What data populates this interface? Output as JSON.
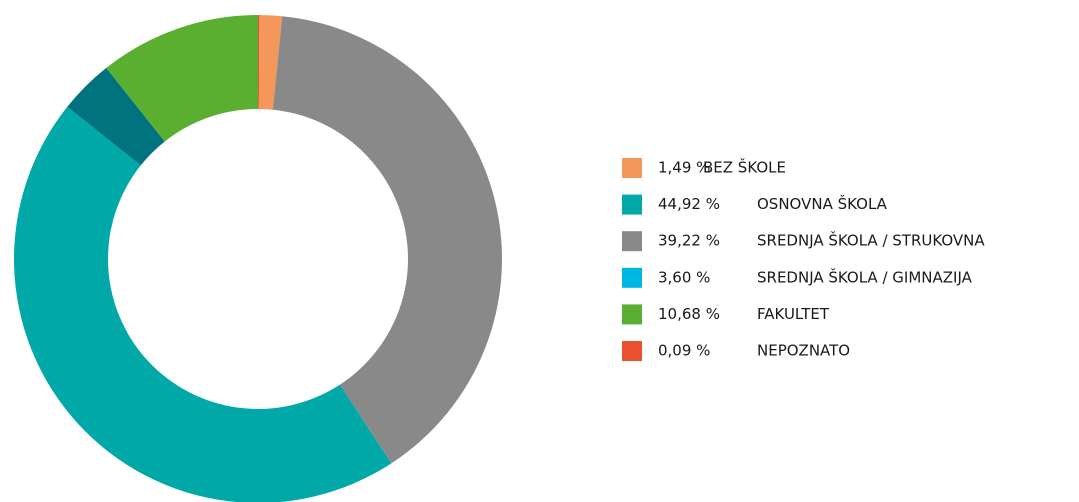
{
  "chart_data": {
    "type": "donut",
    "categories": [
      "BEZ ŠKOLE",
      "OSNOVNA ŠKOLA",
      "SREDNJA ŠKOLA / STRUKOVNA",
      "SREDNJA ŠKOLA / GIMNAZIJA",
      "FAKULTET",
      "NEPOZNATO"
    ],
    "values": [
      1.49,
      44.92,
      39.22,
      3.6,
      10.68,
      0.09
    ],
    "value_labels": [
      "1,49 %",
      "44,92 %",
      "39,22 %",
      "3,60 %",
      "10,68 %",
      "0,09 %"
    ],
    "colors": [
      "#f4975a",
      "#00a9a7",
      "#898989",
      "#00b5e2",
      "#5aaf31",
      "#e8502e"
    ],
    "slice_colors": [
      "#f4975a",
      "#00a9a7",
      "#898989",
      "#00737f",
      "#5aaf31",
      "#e8502e"
    ],
    "legend": "right"
  }
}
